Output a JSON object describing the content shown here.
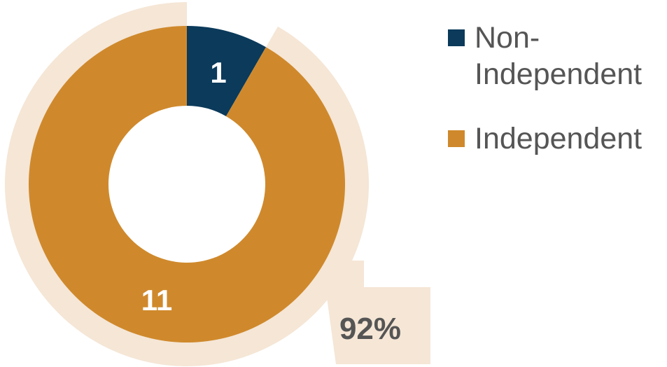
{
  "chart_data": {
    "type": "pie",
    "style": "donut",
    "categories": [
      "Non-Independent",
      "Independent"
    ],
    "values": [
      1,
      11
    ],
    "data_labels": [
      "1",
      "11"
    ],
    "colors": [
      "#0b3a5b",
      "#cf892c"
    ],
    "highlight": {
      "category": "Independent",
      "label": "92%",
      "color": "#f5e6d6"
    },
    "legend": {
      "placement": "right",
      "entries": [
        "Non-Independent",
        "Independent"
      ]
    },
    "label_color": "#555555"
  }
}
